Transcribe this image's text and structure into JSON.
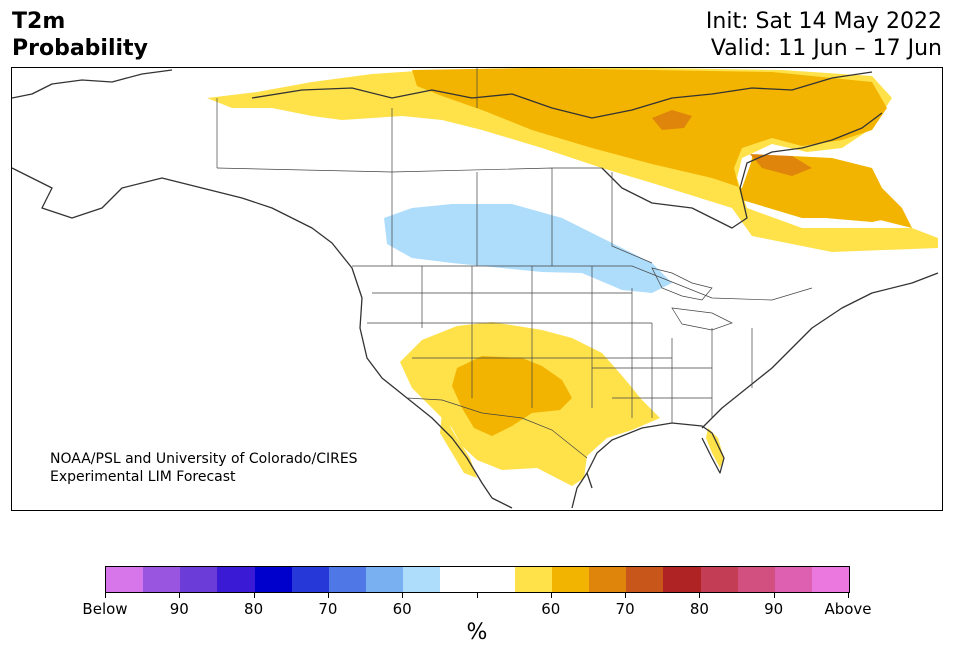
{
  "header": {
    "title_line1": "T2m",
    "title_line2": "Probability",
    "init": "Init: Sat 14 May 2022",
    "valid": "Valid: 11 Jun – 17 Jun"
  },
  "map": {
    "credit_line1": "NOAA/PSL and University of Colorado/CIRES",
    "credit_line2": "Experimental LIM Forecast"
  },
  "legend": {
    "unit": "%",
    "colors": [
      "#d775ea",
      "#9a55e0",
      "#6c3cd9",
      "#3b1ad6",
      "#0000cc",
      "#2638d8",
      "#5077e6",
      "#78b0f2",
      "#aedcfb",
      "#ffffff",
      "#ffffff",
      "#ffe14a",
      "#f2b400",
      "#df850c",
      "#c8561a",
      "#b02324",
      "#c33d54",
      "#d2507f",
      "#dd61b0",
      "#ea78de"
    ],
    "labels": [
      "Below",
      "90",
      "80",
      "70",
      "60",
      "60",
      "70",
      "80",
      "90",
      "Above"
    ]
  },
  "palette": {
    "above_60": "#ffe14a",
    "above_70": "#f2b400",
    "above_80": "#df850c",
    "below_60": "#aedcfb"
  }
}
